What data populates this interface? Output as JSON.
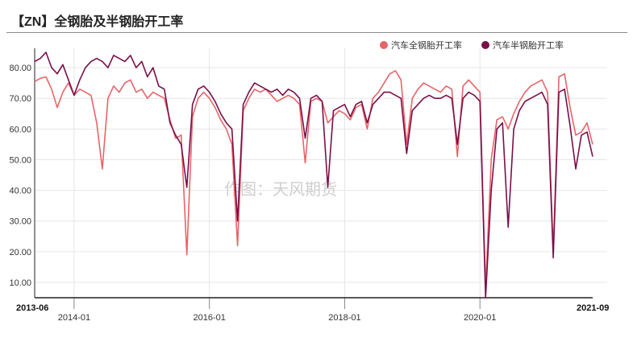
{
  "title": "【ZN】全钢胎及半钢胎开工率",
  "watermark": "作图：天风期货",
  "colors": {
    "full_steel": "#e86468",
    "semi_steel": "#7a0f4a",
    "grid": "#e6e6e6",
    "axis": "#222222"
  },
  "chart_data": {
    "type": "line",
    "x_type": "date",
    "xlim": [
      "2013-06",
      "2021-09"
    ],
    "ylim": [
      5,
      85
    ],
    "y_ticks": [
      "10.00",
      "20.00",
      "30.00",
      "40.00",
      "50.00",
      "60.00",
      "70.00",
      "80.00"
    ],
    "x_ticks_edge": [
      "2013-06",
      "2021-09"
    ],
    "x_ticks_major": [
      "2014-01",
      "2016-01",
      "2018-01",
      "2020-01"
    ],
    "grid": true,
    "legend_position": "top-right",
    "series": [
      {
        "name": "汽车全钢胎开工率",
        "color": "#e86468",
        "points": [
          [
            "2013-06",
            75.5
          ],
          [
            "2013-07",
            76.5
          ],
          [
            "2013-08",
            77
          ],
          [
            "2013-09",
            73
          ],
          [
            "2013-10",
            67
          ],
          [
            "2013-11",
            72
          ],
          [
            "2013-12",
            75
          ],
          [
            "2014-01",
            71
          ],
          [
            "2014-02",
            73
          ],
          [
            "2014-03",
            72
          ],
          [
            "2014-04",
            71
          ],
          [
            "2014-05",
            62
          ],
          [
            "2014-06",
            47
          ],
          [
            "2014-07",
            70
          ],
          [
            "2014-08",
            74
          ],
          [
            "2014-09",
            72
          ],
          [
            "2014-10",
            75
          ],
          [
            "2014-11",
            76
          ],
          [
            "2014-12",
            72
          ],
          [
            "2015-01",
            73
          ],
          [
            "2015-02",
            70
          ],
          [
            "2015-03",
            72
          ],
          [
            "2015-04",
            71
          ],
          [
            "2015-05",
            70
          ],
          [
            "2015-06",
            63
          ],
          [
            "2015-07",
            57
          ],
          [
            "2015-08",
            58
          ],
          [
            "2015-09",
            19
          ],
          [
            "2015-10",
            64
          ],
          [
            "2015-11",
            70
          ],
          [
            "2015-12",
            72
          ],
          [
            "2016-01",
            70
          ],
          [
            "2016-02",
            67
          ],
          [
            "2016-03",
            63
          ],
          [
            "2016-04",
            60
          ],
          [
            "2016-05",
            55
          ],
          [
            "2016-06",
            22
          ],
          [
            "2016-07",
            66
          ],
          [
            "2016-08",
            70
          ],
          [
            "2016-09",
            73
          ],
          [
            "2016-10",
            72
          ],
          [
            "2016-11",
            73
          ],
          [
            "2016-12",
            71
          ],
          [
            "2017-01",
            69
          ],
          [
            "2017-02",
            70
          ],
          [
            "2017-03",
            71
          ],
          [
            "2017-04",
            70
          ],
          [
            "2017-05",
            68
          ],
          [
            "2017-06",
            49
          ],
          [
            "2017-07",
            69
          ],
          [
            "2017-08",
            70
          ],
          [
            "2017-09",
            69
          ],
          [
            "2017-10",
            62
          ],
          [
            "2017-11",
            64
          ],
          [
            "2017-12",
            66
          ],
          [
            "2018-01",
            65
          ],
          [
            "2018-02",
            63
          ],
          [
            "2018-03",
            67
          ],
          [
            "2018-04",
            68
          ],
          [
            "2018-05",
            60
          ],
          [
            "2018-06",
            70
          ],
          [
            "2018-07",
            72
          ],
          [
            "2018-08",
            75
          ],
          [
            "2018-09",
            78
          ],
          [
            "2018-10",
            79
          ],
          [
            "2018-11",
            76
          ],
          [
            "2018-12",
            55
          ],
          [
            "2019-01",
            70
          ],
          [
            "2019-02",
            73
          ],
          [
            "2019-03",
            75
          ],
          [
            "2019-04",
            74
          ],
          [
            "2019-05",
            73
          ],
          [
            "2019-06",
            72
          ],
          [
            "2019-07",
            74
          ],
          [
            "2019-08",
            73
          ],
          [
            "2019-09",
            51
          ],
          [
            "2019-10",
            74
          ],
          [
            "2019-11",
            76
          ],
          [
            "2019-12",
            74
          ],
          [
            "2020-01",
            72
          ],
          [
            "2020-02",
            8
          ],
          [
            "2020-03",
            50
          ],
          [
            "2020-04",
            63
          ],
          [
            "2020-05",
            64
          ],
          [
            "2020-06",
            60
          ],
          [
            "2020-07",
            65
          ],
          [
            "2020-08",
            69
          ],
          [
            "2020-09",
            72
          ],
          [
            "2020-10",
            74
          ],
          [
            "2020-11",
            75
          ],
          [
            "2020-12",
            76
          ],
          [
            "2021-01",
            72
          ],
          [
            "2021-02",
            20
          ],
          [
            "2021-03",
            77
          ],
          [
            "2021-04",
            78
          ],
          [
            "2021-05",
            67
          ],
          [
            "2021-06",
            58
          ],
          [
            "2021-07",
            59
          ],
          [
            "2021-08",
            62
          ],
          [
            "2021-09",
            55
          ]
        ]
      },
      {
        "name": "汽车半钢胎开工率",
        "color": "#7a0f4a",
        "points": [
          [
            "2013-06",
            82
          ],
          [
            "2013-07",
            83
          ],
          [
            "2013-08",
            85
          ],
          [
            "2013-09",
            80
          ],
          [
            "2013-10",
            78
          ],
          [
            "2013-11",
            81
          ],
          [
            "2013-12",
            76
          ],
          [
            "2014-01",
            71
          ],
          [
            "2014-02",
            76
          ],
          [
            "2014-03",
            80
          ],
          [
            "2014-04",
            82
          ],
          [
            "2014-05",
            83
          ],
          [
            "2014-06",
            82
          ],
          [
            "2014-07",
            80
          ],
          [
            "2014-08",
            84
          ],
          [
            "2014-09",
            83
          ],
          [
            "2014-10",
            82
          ],
          [
            "2014-11",
            84
          ],
          [
            "2014-12",
            80
          ],
          [
            "2015-01",
            82
          ],
          [
            "2015-02",
            77
          ],
          [
            "2015-03",
            80
          ],
          [
            "2015-04",
            74
          ],
          [
            "2015-05",
            73
          ],
          [
            "2015-06",
            62
          ],
          [
            "2015-07",
            58
          ],
          [
            "2015-08",
            55
          ],
          [
            "2015-09",
            41
          ],
          [
            "2015-10",
            68
          ],
          [
            "2015-11",
            73
          ],
          [
            "2015-12",
            74
          ],
          [
            "2016-01",
            72
          ],
          [
            "2016-02",
            69
          ],
          [
            "2016-03",
            65
          ],
          [
            "2016-04",
            62
          ],
          [
            "2016-05",
            60
          ],
          [
            "2016-06",
            30
          ],
          [
            "2016-07",
            68
          ],
          [
            "2016-08",
            72
          ],
          [
            "2016-09",
            75
          ],
          [
            "2016-10",
            74
          ],
          [
            "2016-11",
            73
          ],
          [
            "2016-12",
            72
          ],
          [
            "2017-01",
            73
          ],
          [
            "2017-02",
            71
          ],
          [
            "2017-03",
            73
          ],
          [
            "2017-04",
            72
          ],
          [
            "2017-05",
            70
          ],
          [
            "2017-06",
            57
          ],
          [
            "2017-07",
            70
          ],
          [
            "2017-08",
            71
          ],
          [
            "2017-09",
            69
          ],
          [
            "2017-10",
            41
          ],
          [
            "2017-11",
            66
          ],
          [
            "2017-12",
            67
          ],
          [
            "2018-01",
            68
          ],
          [
            "2018-02",
            64
          ],
          [
            "2018-03",
            68
          ],
          [
            "2018-04",
            69
          ],
          [
            "2018-05",
            62
          ],
          [
            "2018-06",
            68
          ],
          [
            "2018-07",
            70
          ],
          [
            "2018-08",
            72
          ],
          [
            "2018-09",
            72
          ],
          [
            "2018-10",
            71
          ],
          [
            "2018-11",
            70
          ],
          [
            "2018-12",
            52
          ],
          [
            "2019-01",
            66
          ],
          [
            "2019-02",
            68
          ],
          [
            "2019-03",
            70
          ],
          [
            "2019-04",
            71
          ],
          [
            "2019-05",
            70
          ],
          [
            "2019-06",
            70
          ],
          [
            "2019-07",
            71
          ],
          [
            "2019-08",
            70
          ],
          [
            "2019-09",
            55
          ],
          [
            "2019-10",
            70
          ],
          [
            "2019-11",
            72
          ],
          [
            "2019-12",
            71
          ],
          [
            "2020-01",
            69
          ],
          [
            "2020-02",
            5
          ],
          [
            "2020-03",
            40
          ],
          [
            "2020-04",
            60
          ],
          [
            "2020-05",
            62
          ],
          [
            "2020-06",
            28
          ],
          [
            "2020-07",
            60
          ],
          [
            "2020-08",
            66
          ],
          [
            "2020-09",
            69
          ],
          [
            "2020-10",
            70
          ],
          [
            "2020-11",
            71
          ],
          [
            "2020-12",
            72
          ],
          [
            "2021-01",
            68
          ],
          [
            "2021-02",
            18
          ],
          [
            "2021-03",
            72
          ],
          [
            "2021-04",
            73
          ],
          [
            "2021-05",
            61
          ],
          [
            "2021-06",
            47
          ],
          [
            "2021-07",
            58
          ],
          [
            "2021-08",
            59
          ],
          [
            "2021-09",
            51
          ]
        ]
      }
    ]
  }
}
